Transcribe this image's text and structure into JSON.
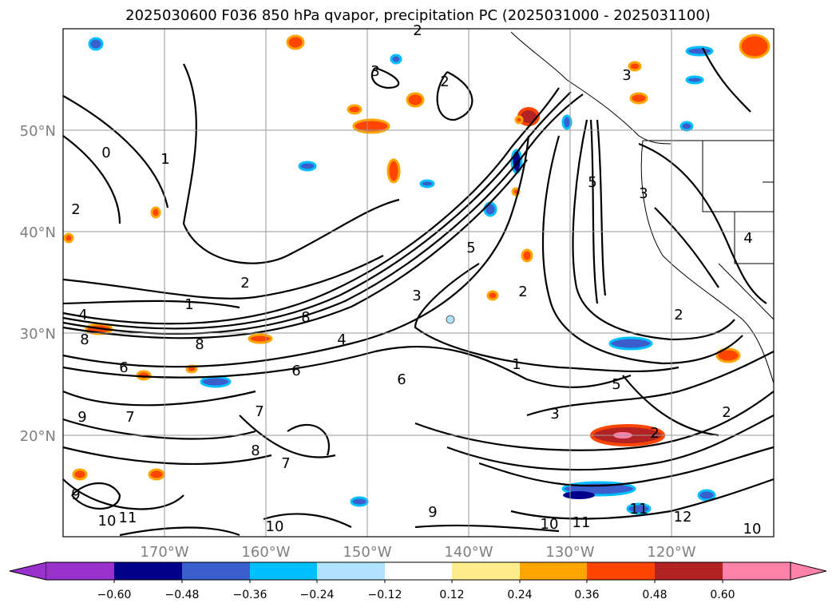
{
  "title": "2025030600 F036 850 hPa qvapor, precipitation PC (2025031000 - 2025031100)",
  "map": {
    "lat_labels": [
      "50°N",
      "40°N",
      "30°N",
      "20°N"
    ],
    "lon_labels": [
      "170°W",
      "160°W",
      "150°W",
      "140°W",
      "130°W",
      "120°W"
    ],
    "lat_values": [
      50,
      40,
      30,
      20
    ],
    "lon_values": [
      -170,
      -160,
      -150,
      -140,
      -130,
      -120
    ],
    "extent": {
      "lon_min": -180,
      "lon_max": -110,
      "lat_min": 10,
      "lat_max": 60
    },
    "contour_labels": [
      "1",
      "2",
      "3",
      "4",
      "5",
      "6",
      "7",
      "8",
      "9",
      "10",
      "11",
      "12",
      "0",
      "1",
      "2",
      "3",
      "4",
      "5",
      "8",
      "2",
      "3",
      "2",
      "2",
      "1",
      "3",
      "3",
      "2",
      "5",
      "4",
      "2",
      "6",
      "9",
      "11",
      "10",
      "11",
      "10",
      "8",
      "9",
      "10",
      "8",
      "7",
      "6",
      "7",
      "2"
    ]
  },
  "colorbar": {
    "ticks": [
      "−0.60",
      "−0.48",
      "−0.36",
      "−0.24",
      "−0.12",
      "0.12",
      "0.24",
      "0.36",
      "0.48",
      "0.60"
    ],
    "colors": [
      "#9932CC",
      "#00008B",
      "#3A5FCD",
      "#00BFFF",
      "#B0E2FF",
      "#FFFFFF",
      "#FFEC8B",
      "#FFA500",
      "#FF4500",
      "#B22222",
      "#FF82AB"
    ],
    "extend": "both"
  },
  "colors": {
    "grid": "#9a9a9a",
    "contour": "#000000",
    "axis_label": "#7f7f7f"
  }
}
